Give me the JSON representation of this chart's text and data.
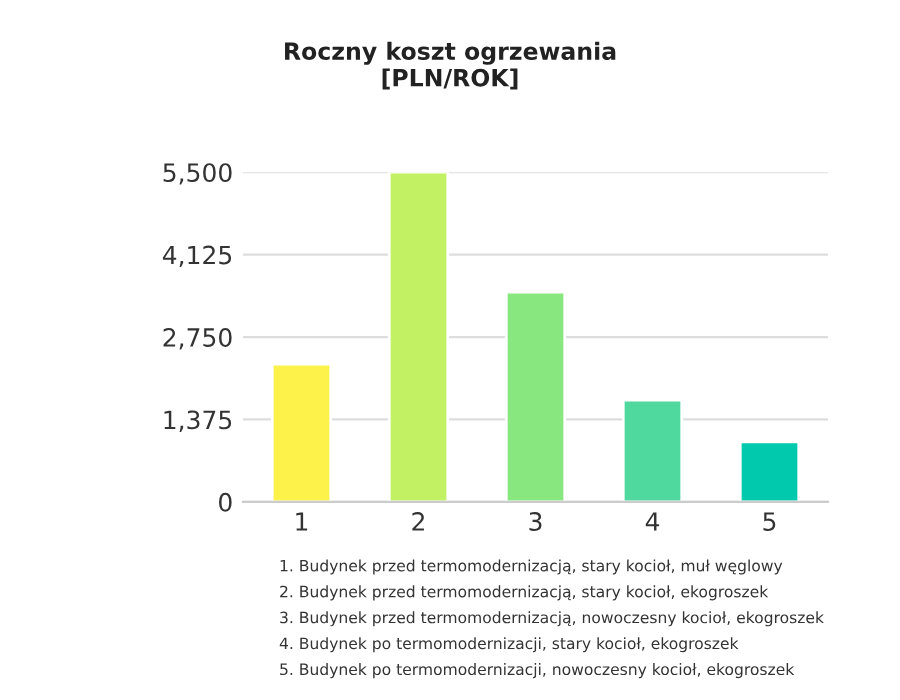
{
  "chart_data": {
    "type": "bar",
    "title": "Roczny koszt ogrzewania\n[PLN/ROK]",
    "categories": [
      "1",
      "2",
      "3",
      "4",
      "5"
    ],
    "values": [
      2300,
      5500,
      3500,
      1700,
      1000
    ],
    "colors": [
      "#fdf24a",
      "#c2f264",
      "#88e87f",
      "#4fd99f",
      "#00c9ad"
    ],
    "ylim": [
      0,
      5500
    ],
    "yticks": [
      {
        "value": 0,
        "label": "0"
      },
      {
        "value": 1375,
        "label": "1,375"
      },
      {
        "value": 2750,
        "label": "2,750"
      },
      {
        "value": 4125,
        "label": "4,125"
      },
      {
        "value": 5500,
        "label": "5,500"
      }
    ],
    "grid": "y",
    "annotations": [
      "1. Budynek przed termomodernizacją, stary kocioł, muł węglowy",
      "2. Budynek przed termomodernizacją, stary kocioł, ekogroszek",
      "3. Budynek przed termomodernizacją, nowoczesny kocioł, ekogroszek",
      "4. Budynek po termomodernizacji, stary kocioł, ekogroszek",
      "5. Budynek po termomodernizacji, nowoczesny kocioł, ekogroszek"
    ]
  }
}
